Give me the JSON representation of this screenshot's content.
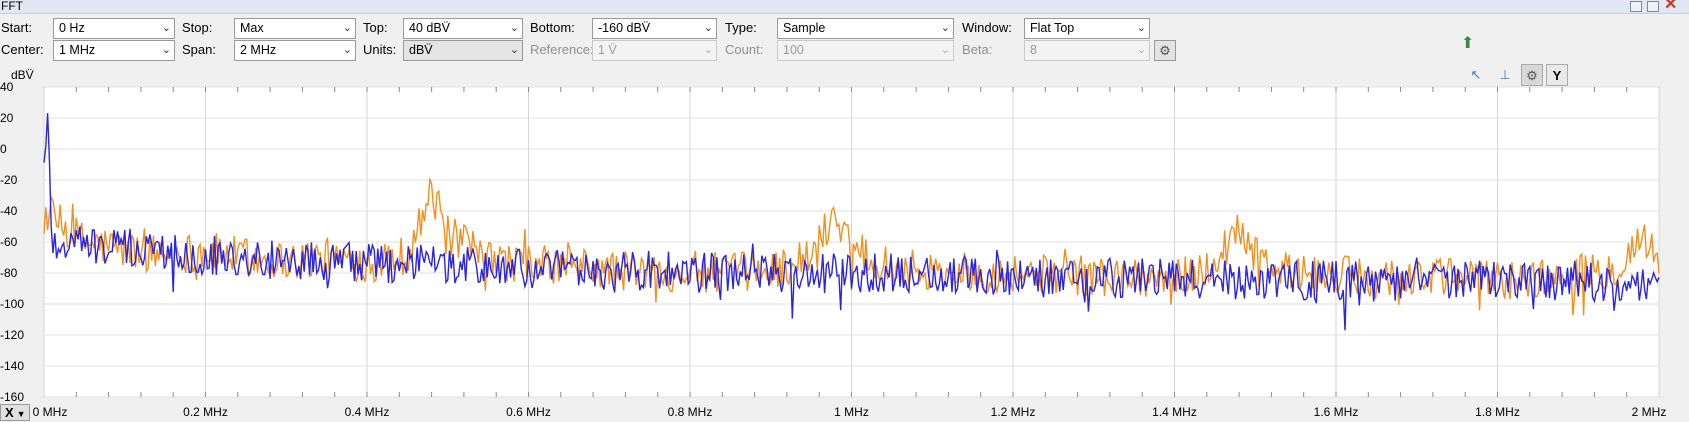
{
  "window": {
    "title": "FFT"
  },
  "toolbar": {
    "row1": [
      {
        "label": "Start:",
        "value": "0 Hz"
      },
      {
        "label": "Stop:",
        "value": "Max"
      },
      {
        "label": "Top:",
        "value": "40 dBV̈"
      },
      {
        "label": "Bottom:",
        "value": "-160 dBV̈"
      },
      {
        "label": "Type:",
        "value": "Sample"
      },
      {
        "label": "Window:",
        "value": "Flat Top"
      }
    ],
    "row2": [
      {
        "label": "Center:",
        "value": "1 MHz"
      },
      {
        "label": "Span:",
        "value": "2 MHz"
      },
      {
        "label": "Units:",
        "value": "dBV̈"
      },
      {
        "label": "Reference:",
        "value": "1 V̈"
      },
      {
        "label": "Count:",
        "value": "100"
      },
      {
        "label": "Beta:",
        "value": "8"
      }
    ]
  },
  "axis_buttons": {
    "x": "X",
    "y": "Y"
  },
  "chart_data": {
    "type": "line",
    "ylabel": "dBV̈",
    "xlabel": "",
    "ylim": [
      -160,
      40
    ],
    "xlim": [
      0,
      2
    ],
    "yticks": [
      "40",
      "20",
      "0",
      "-20",
      "-40",
      "-60",
      "-80",
      "-100",
      "-120",
      "-140",
      "-160"
    ],
    "xticks": [
      "0 MHz",
      "0.2 MHz",
      "0.4 MHz",
      "0.6 MHz",
      "0.8 MHz",
      "1 MHz",
      "1.2 MHz",
      "1.4 MHz",
      "1.6 MHz",
      "1.8 MHz",
      "2 MHz"
    ],
    "grid": true,
    "series": [
      {
        "color": "#f0901e",
        "x_mhz": [
          0.0,
          0.01,
          0.05,
          0.1,
          0.15,
          0.2,
          0.25,
          0.3,
          0.35,
          0.4,
          0.45,
          0.48,
          0.5,
          0.55,
          0.6,
          0.65,
          0.7,
          0.75,
          0.8,
          0.85,
          0.9,
          0.95,
          0.98,
          1.0,
          1.05,
          1.1,
          1.15,
          1.2,
          1.25,
          1.3,
          1.35,
          1.4,
          1.45,
          1.48,
          1.5,
          1.55,
          1.6,
          1.65,
          1.7,
          1.75,
          1.8,
          1.85,
          1.9,
          1.95,
          1.98,
          2.0
        ],
        "y_dbv": [
          -40,
          -45,
          -60,
          -65,
          -68,
          -66,
          -70,
          -72,
          -70,
          -74,
          -68,
          -28,
          -55,
          -72,
          -74,
          -76,
          -78,
          -80,
          -78,
          -80,
          -78,
          -70,
          -40,
          -62,
          -76,
          -78,
          -80,
          -80,
          -81,
          -82,
          -82,
          -84,
          -75,
          -48,
          -70,
          -80,
          -82,
          -82,
          -83,
          -83,
          -84,
          -84,
          -82,
          -76,
          -55,
          -75
        ]
      },
      {
        "color": "#2a24e0",
        "x_mhz": [
          0.0,
          0.003,
          0.005,
          0.01,
          0.05,
          0.1,
          0.15,
          0.2,
          0.25,
          0.3,
          0.35,
          0.4,
          0.45,
          0.5,
          0.55,
          0.6,
          0.65,
          0.7,
          0.75,
          0.8,
          0.85,
          0.9,
          0.95,
          1.0,
          1.05,
          1.1,
          1.15,
          1.2,
          1.25,
          1.3,
          1.35,
          1.4,
          1.45,
          1.5,
          1.55,
          1.6,
          1.65,
          1.7,
          1.75,
          1.8,
          1.85,
          1.9,
          1.95,
          2.0
        ],
        "y_dbv": [
          -10,
          0,
          22,
          -60,
          -62,
          -64,
          -66,
          -68,
          -70,
          -72,
          -72,
          -74,
          -74,
          -76,
          -76,
          -78,
          -78,
          -80,
          -78,
          -80,
          -80,
          -80,
          -80,
          -80,
          -80,
          -81,
          -82,
          -82,
          -82,
          -83,
          -83,
          -84,
          -84,
          -84,
          -84,
          -85,
          -85,
          -85,
          -85,
          -85,
          -85,
          -85,
          -86,
          -86
        ]
      }
    ]
  }
}
